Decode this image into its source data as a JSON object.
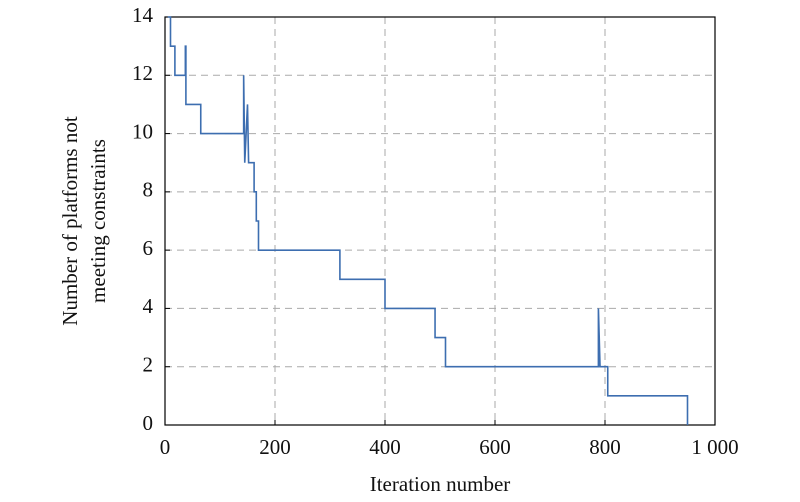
{
  "chart_data": {
    "type": "line",
    "xlabel": "Iteration number",
    "ylabel": [
      "Number of platforms not",
      "meeting constraints"
    ],
    "xlim": [
      0,
      1000
    ],
    "ylim": [
      0,
      14
    ],
    "xticks": [
      0,
      200,
      400,
      600,
      800,
      {
        "value": 1000,
        "label": "1 000"
      }
    ],
    "yticks": [
      0,
      2,
      4,
      6,
      8,
      10,
      12,
      14
    ],
    "grid": true,
    "series": [
      {
        "color": "#3d6eb0",
        "x": [
          5,
          10,
          10,
          18,
          18,
          37,
          37,
          38,
          38,
          65,
          65,
          143,
          143,
          145,
          150,
          152,
          162,
          162,
          166,
          166,
          170,
          170,
          318,
          318,
          400,
          400,
          491,
          491,
          510,
          510,
          788,
          788,
          791,
          805,
          805,
          950,
          950
        ],
        "values": [
          14,
          14,
          13,
          13,
          12,
          12,
          13,
          13,
          11,
          11,
          10,
          10,
          12,
          9,
          11,
          9,
          9,
          8,
          8,
          7,
          7,
          6,
          6,
          5,
          5,
          4,
          4,
          3,
          3,
          2,
          2,
          4,
          2,
          2,
          1,
          1,
          0
        ]
      }
    ]
  }
}
